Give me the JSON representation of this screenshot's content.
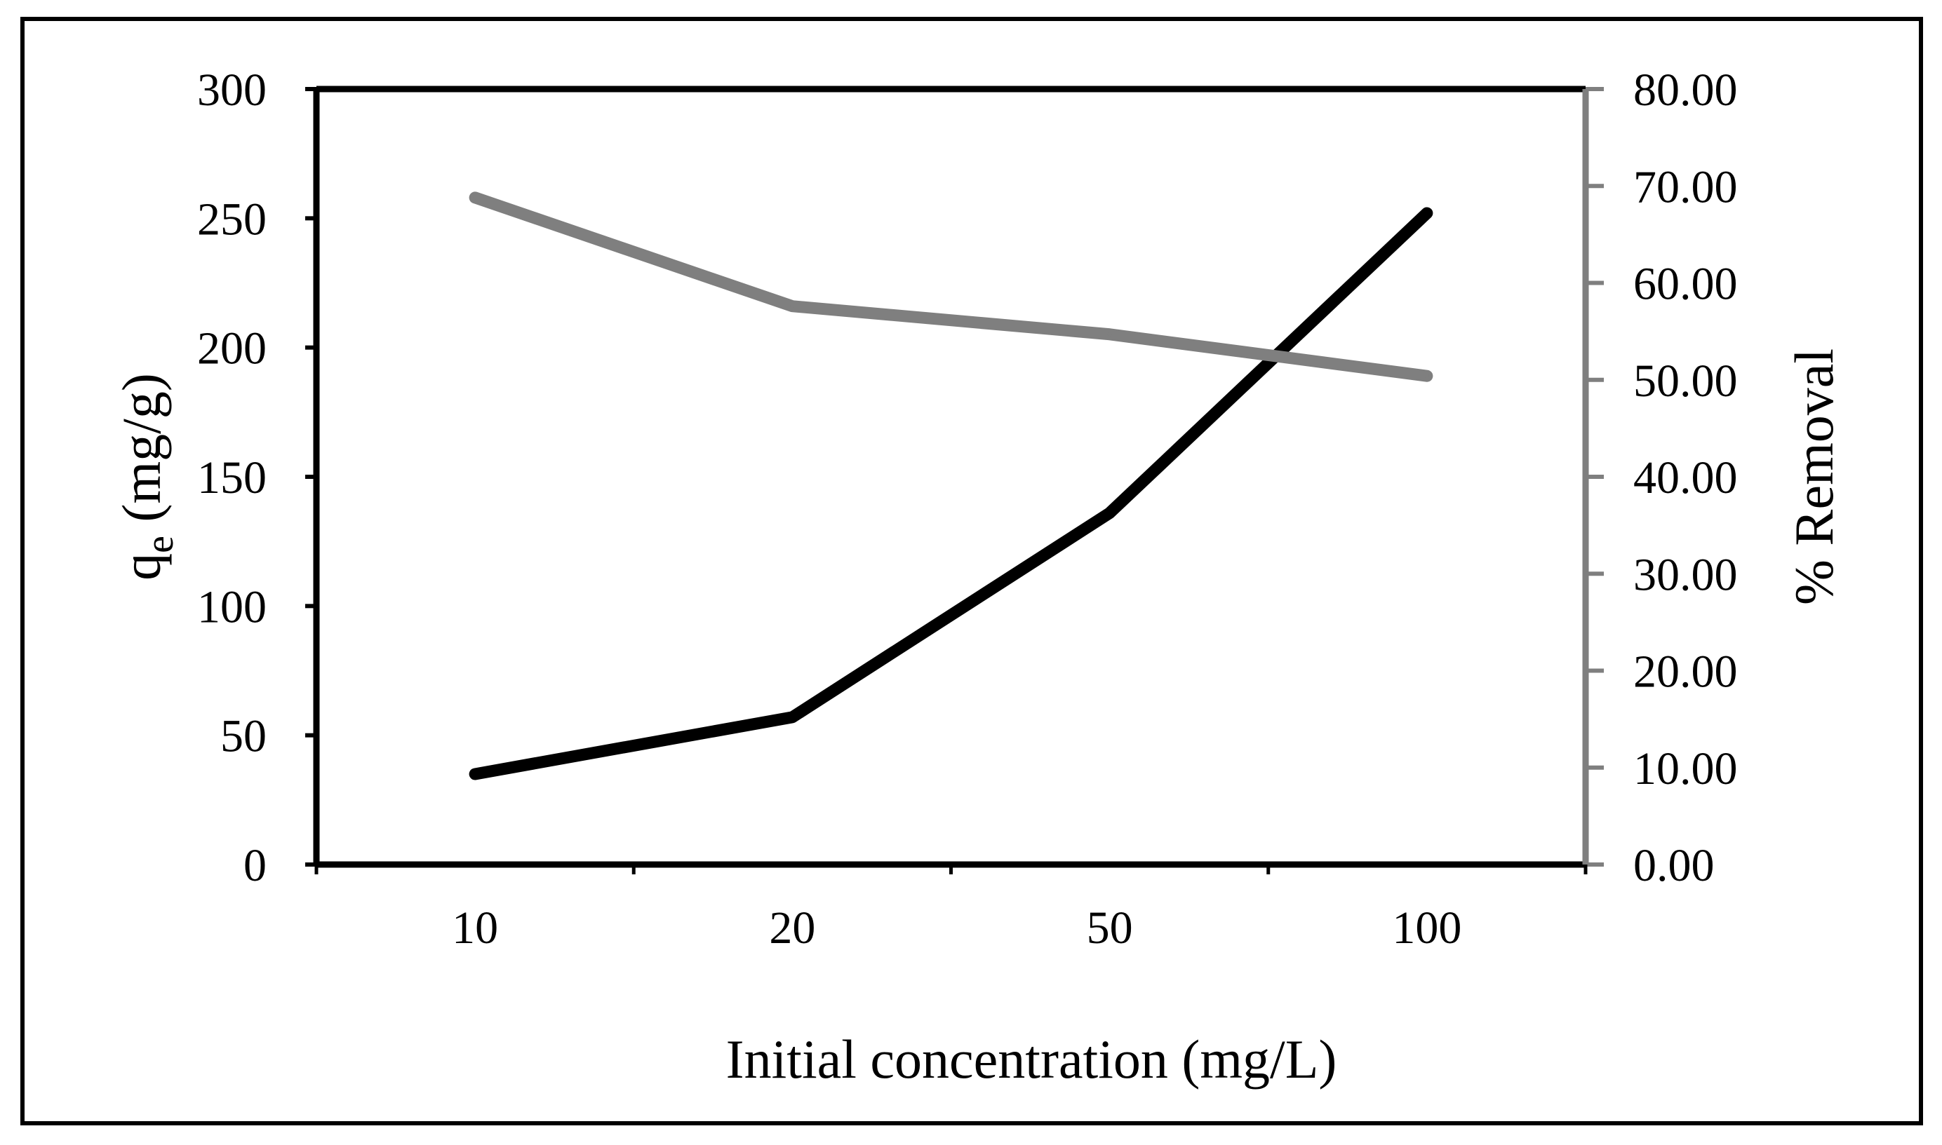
{
  "chart_data": {
    "type": "line",
    "title": "",
    "xlabel": "Initial concentration (mg/L)",
    "ylabel": "qe (mg/g)",
    "ylabel_parts": {
      "base": "q",
      "sub": "e",
      "unit": " (mg/g)"
    },
    "y2label": "% Removal",
    "categories": [
      "10",
      "20",
      "50",
      "100"
    ],
    "ylim": [
      0,
      300
    ],
    "y2lim": [
      0,
      80
    ],
    "yticks": [
      "0",
      "50",
      "100",
      "150",
      "200",
      "250",
      "300"
    ],
    "y2ticks": [
      "0.00",
      "10.00",
      "20.00",
      "30.00",
      "40.00",
      "50.00",
      "60.00",
      "70.00",
      "80.00"
    ],
    "series": [
      {
        "name": "qe",
        "axis": "left",
        "color": "#000000",
        "values": [
          35,
          57,
          136,
          252
        ]
      },
      {
        "name": "% Removal",
        "axis": "right",
        "color": "#7f7f7f",
        "values": [
          68.8,
          57.6,
          54.7,
          50.4
        ]
      }
    ],
    "grid": false,
    "legend": "none"
  }
}
